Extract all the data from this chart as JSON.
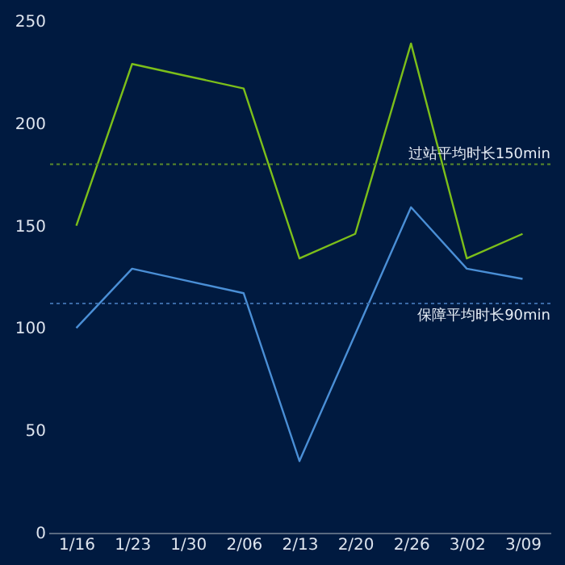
{
  "chart_data": {
    "type": "line",
    "categories": [
      "1/16",
      "1/23",
      "1/30",
      "2/06",
      "2/13",
      "2/20",
      "2/26",
      "3/02",
      "3/09"
    ],
    "series": [
      {
        "color": "#7cbf1a",
        "values": [
          150,
          229,
          223,
          217,
          134,
          146,
          239,
          134,
          146
        ]
      },
      {
        "color": "#4a8fd6",
        "values": [
          100,
          129,
          123,
          117,
          35,
          97,
          159,
          129,
          124
        ]
      }
    ],
    "ylim": [
      0,
      250
    ],
    "yticks": [
      0,
      50,
      100,
      150,
      200,
      250
    ],
    "grid": false,
    "legend": false,
    "marker": "none",
    "line_style": "solid",
    "ref_lines": [
      {
        "axis": "y",
        "value": 180,
        "label": "过站平均时长150min",
        "color": "#5a8a2a",
        "line_style": "dotted"
      },
      {
        "axis": "y",
        "value": 112,
        "label": "保障平均时长90min",
        "color": "#3a6aa6",
        "line_style": "dotted"
      }
    ]
  }
}
